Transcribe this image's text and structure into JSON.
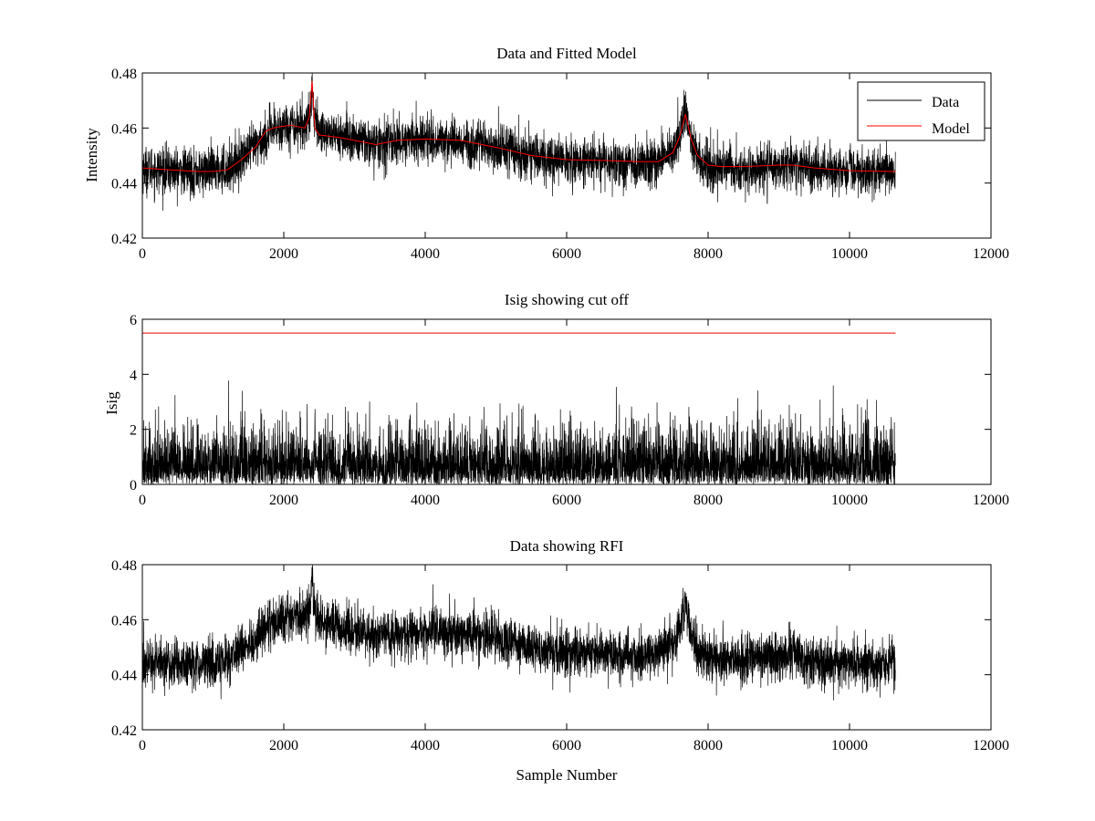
{
  "colors": {
    "data": "#000000",
    "model": "#ff0000",
    "axes": "#000000",
    "background": "#ffffff"
  },
  "chart_data": [
    {
      "type": "line",
      "title": "Data and Fitted Model",
      "xlabel": "",
      "ylabel": "Intensity",
      "xlim": [
        0,
        12000
      ],
      "ylim": [
        0.42,
        0.48
      ],
      "xticks": [
        0,
        2000,
        4000,
        6000,
        8000,
        10000,
        12000
      ],
      "yticks": [
        0.42,
        0.44,
        0.46,
        0.48
      ],
      "xtick_labels": [
        "0",
        "2000",
        "4000",
        "6000",
        "8000",
        "10000",
        "12000"
      ],
      "ytick_labels": [
        "0.42",
        "0.44",
        "0.46",
        "0.48"
      ],
      "grid": false,
      "legend": {
        "location": "top-right",
        "entries": [
          "Data",
          "Model"
        ]
      },
      "series": [
        {
          "name": "Data",
          "color": "#000000",
          "style": "noisy",
          "noise_sd": 0.0042,
          "n_points": 10650,
          "baseline": {
            "x": [
              0,
              800,
              1200,
              1500,
              1800,
              2000,
              2300,
              2380,
              2400,
              2430,
              2500,
              2800,
              3300,
              3600,
              4000,
              4500,
              5000,
              5500,
              6000,
              6500,
              7000,
              7300,
              7500,
              7600,
              7680,
              7750,
              7850,
              8000,
              8500,
              9000,
              9200,
              9500,
              10000,
              10650
            ],
            "y": [
              0.445,
              0.444,
              0.445,
              0.451,
              0.458,
              0.461,
              0.461,
              0.466,
              0.477,
              0.463,
              0.459,
              0.457,
              0.454,
              0.455,
              0.456,
              0.455,
              0.453,
              0.45,
              0.448,
              0.448,
              0.447,
              0.448,
              0.451,
              0.457,
              0.466,
              0.456,
              0.449,
              0.446,
              0.445,
              0.446,
              0.447,
              0.445,
              0.444,
              0.444
            ]
          }
        },
        {
          "name": "Model",
          "color": "#ff0000",
          "style": "line",
          "x": [
            0,
            400,
            800,
            1000,
            1200,
            1400,
            1600,
            1750,
            1850,
            1950,
            2100,
            2300,
            2360,
            2400,
            2440,
            2500,
            2800,
            3000,
            3300,
            3600,
            4000,
            4500,
            5000,
            5500,
            6000,
            6500,
            7000,
            7300,
            7500,
            7600,
            7680,
            7760,
            7850,
            8000,
            8200,
            8500,
            9000,
            9200,
            9500,
            10000,
            10650
          ],
          "y": [
            0.4455,
            0.4448,
            0.4442,
            0.4442,
            0.4448,
            0.4485,
            0.453,
            0.459,
            0.46,
            0.4605,
            0.461,
            0.46,
            0.464,
            0.477,
            0.46,
            0.4575,
            0.4565,
            0.4555,
            0.454,
            0.4555,
            0.456,
            0.4555,
            0.453,
            0.45,
            0.4485,
            0.4482,
            0.4478,
            0.4478,
            0.451,
            0.457,
            0.465,
            0.456,
            0.45,
            0.4465,
            0.446,
            0.446,
            0.4465,
            0.4465,
            0.4455,
            0.4445,
            0.4442
          ]
        }
      ]
    },
    {
      "type": "line",
      "title": "Isig showing cut off",
      "xlabel": "",
      "ylabel": "Isig",
      "xlim": [
        0,
        12000
      ],
      "ylim": [
        0,
        6
      ],
      "xticks": [
        0,
        2000,
        4000,
        6000,
        8000,
        10000,
        12000
      ],
      "yticks": [
        0,
        2,
        4,
        6
      ],
      "xtick_labels": [
        "0",
        "2000",
        "4000",
        "6000",
        "8000",
        "10000",
        "12000"
      ],
      "ytick_labels": [
        "0",
        "2",
        "4",
        "6"
      ],
      "grid": false,
      "series": [
        {
          "color": "#000000",
          "style": "abs-noise",
          "scale": 1.0,
          "n_points": 10650,
          "max_value": 3.9
        },
        {
          "color": "#ff0000",
          "style": "line",
          "x": [
            0,
            10650
          ],
          "y": [
            5.5,
            5.5
          ]
        }
      ]
    },
    {
      "type": "line",
      "title": "Data showing RFI",
      "xlabel": "Sample Number",
      "ylabel": "",
      "xlim": [
        0,
        12000
      ],
      "ylim": [
        0.42,
        0.48
      ],
      "xticks": [
        0,
        2000,
        4000,
        6000,
        8000,
        10000,
        12000
      ],
      "yticks": [
        0.42,
        0.44,
        0.46,
        0.48
      ],
      "xtick_labels": [
        "0",
        "2000",
        "4000",
        "6000",
        "8000",
        "10000",
        "12000"
      ],
      "ytick_labels": [
        "0.42",
        "0.44",
        "0.46",
        "0.48"
      ],
      "grid": false,
      "series": [
        {
          "color": "#000000",
          "style": "noisy",
          "noise_sd": 0.0042,
          "n_points": 10650,
          "baseline": {
            "x": [
              0,
              800,
              1200,
              1500,
              1800,
              2000,
              2300,
              2380,
              2400,
              2430,
              2500,
              2800,
              3300,
              3600,
              4000,
              4500,
              5000,
              5500,
              6000,
              6500,
              7000,
              7300,
              7500,
              7600,
              7680,
              7750,
              7850,
              8000,
              8500,
              9000,
              9200,
              9500,
              10000,
              10650
            ],
            "y": [
              0.445,
              0.444,
              0.445,
              0.451,
              0.458,
              0.461,
              0.461,
              0.466,
              0.477,
              0.463,
              0.459,
              0.457,
              0.454,
              0.455,
              0.456,
              0.455,
              0.453,
              0.45,
              0.448,
              0.448,
              0.447,
              0.448,
              0.451,
              0.457,
              0.466,
              0.456,
              0.449,
              0.446,
              0.445,
              0.446,
              0.447,
              0.445,
              0.444,
              0.444
            ]
          }
        }
      ]
    }
  ]
}
